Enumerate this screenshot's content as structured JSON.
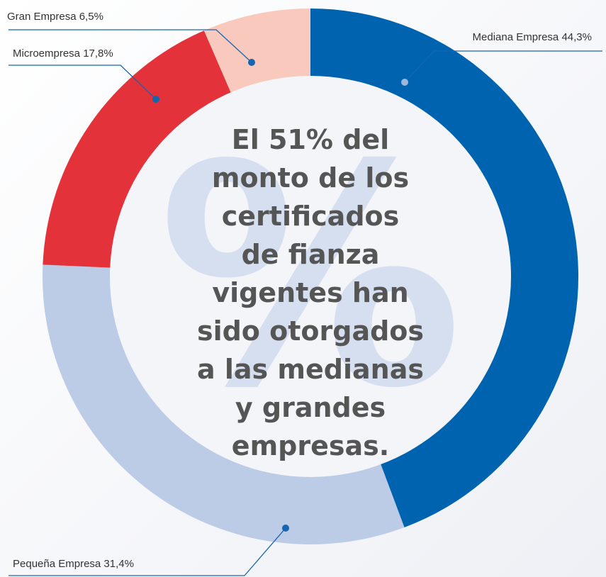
{
  "chart_data": {
    "type": "donut",
    "categories": [
      "Mediana Empresa",
      "Pequeña Empresa",
      "Microempresa",
      "Gran Empresa"
    ],
    "values": [
      44.3,
      31.4,
      17.8,
      6.5
    ],
    "value_labels": [
      "44,3%",
      "31,4%",
      "17,8%",
      "6,5%"
    ],
    "colors": [
      "#0063af",
      "#bccbe6",
      "#e4323a",
      "#f8c9bc"
    ],
    "watermark": "%",
    "annotation_lines": [
      "El 51% del",
      "monto de los",
      "certificados",
      "de fianza",
      "vigentes han",
      "sido otorgados",
      "a las medianas",
      "y grandes",
      "empresas."
    ]
  }
}
